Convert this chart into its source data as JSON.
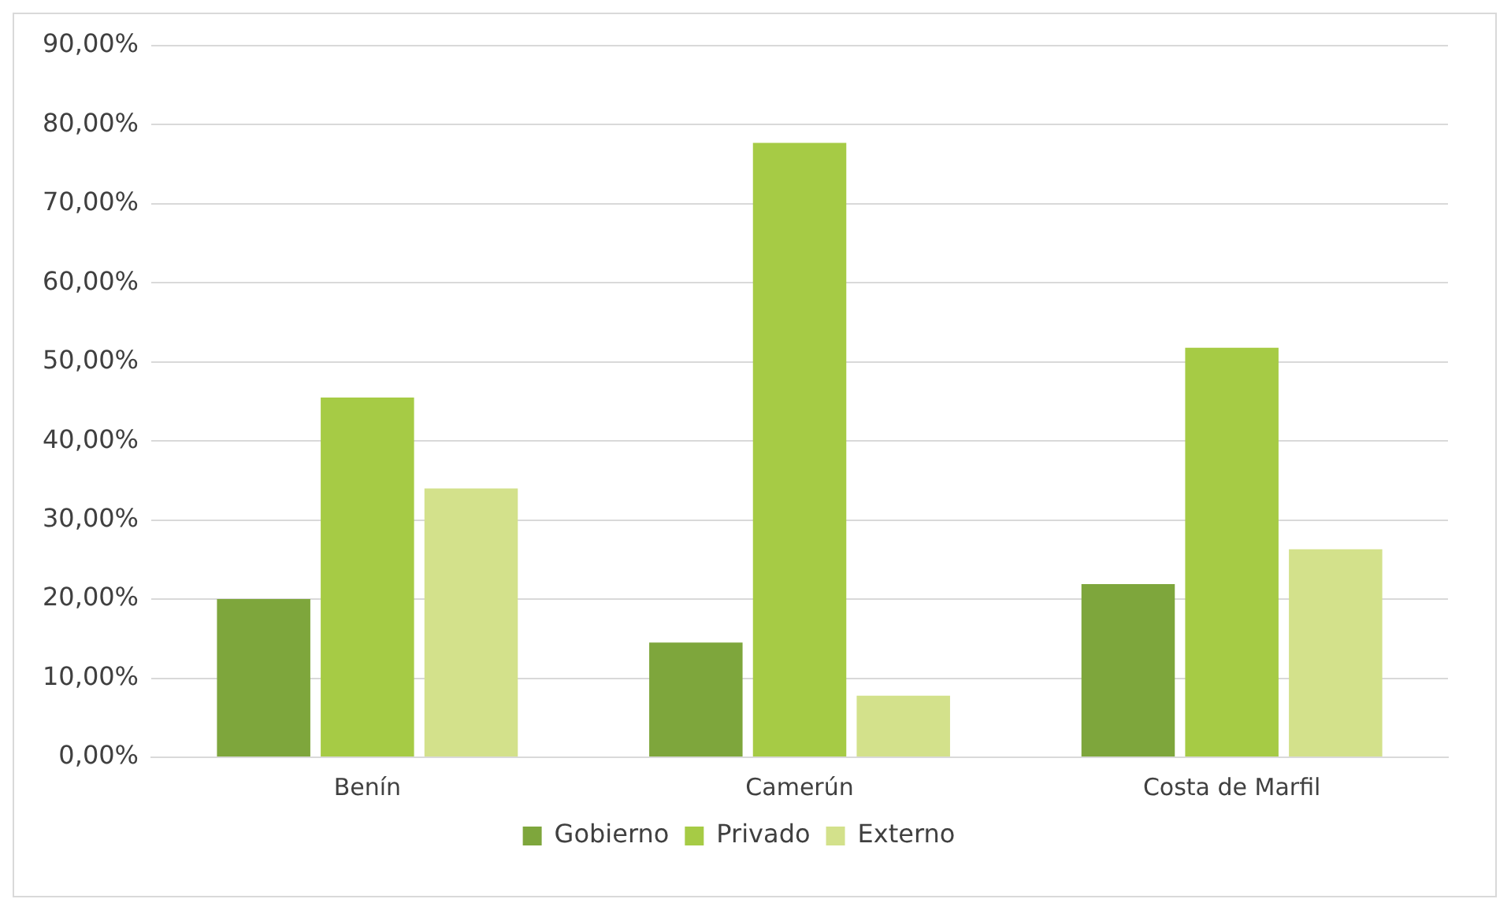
{
  "chart_data": {
    "type": "bar",
    "categories": [
      "Benín",
      "Camerún",
      "Costa de Marfil"
    ],
    "series": [
      {
        "name": "Gobierno",
        "color": "#7ea63c",
        "values": [
          20,
          14.5,
          21.9
        ]
      },
      {
        "name": "Privado",
        "color": "#a6cb45",
        "values": [
          45.5,
          77.7,
          51.8
        ]
      },
      {
        "name": "Externo",
        "color": "#d3e18b",
        "values": [
          34,
          7.8,
          26.3
        ]
      }
    ],
    "ylim": [
      0,
      90
    ],
    "yticks": [
      {
        "value": 0,
        "label": "0,00%"
      },
      {
        "value": 10,
        "label": "10,00%"
      },
      {
        "value": 20,
        "label": "20,00%"
      },
      {
        "value": 30,
        "label": "30,00%"
      },
      {
        "value": 40,
        "label": "40,00%"
      },
      {
        "value": 50,
        "label": "50,00%"
      },
      {
        "value": 60,
        "label": "60,00%"
      },
      {
        "value": 70,
        "label": "70,00%"
      },
      {
        "value": 80,
        "label": "80,00%"
      },
      {
        "value": 90,
        "label": "90,00%"
      }
    ],
    "grid": "y",
    "legend": "bottom"
  }
}
